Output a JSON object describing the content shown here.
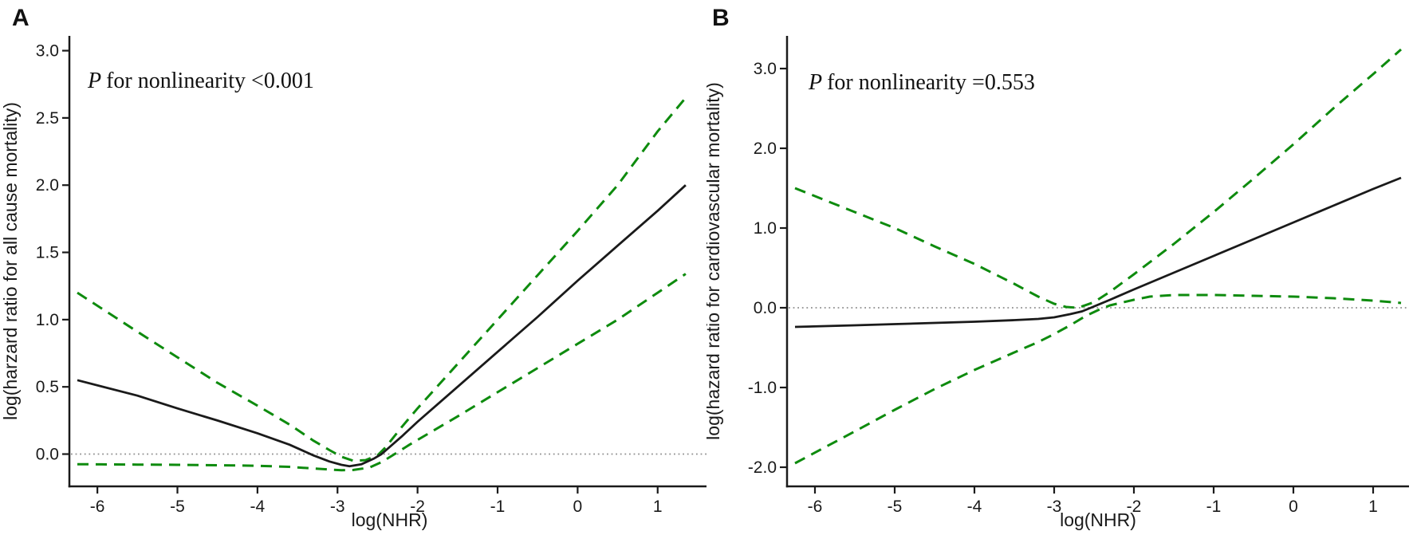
{
  "figure": {
    "background": "#ffffff",
    "axis_color": "#1a1a1a",
    "ci_color": "#0e8b0e",
    "reference_line_color": "#8f8f8f",
    "estimate_color": "#1a1a1a"
  },
  "chart_data": [
    {
      "type": "line",
      "panel_label": "A",
      "annotation": {
        "p": "P",
        "rest": "for nonlinearity <0.001"
      },
      "xlabel": "log(NHR)",
      "ylabel": "log(harzard ratio for all cause mortality)",
      "xlim": [
        -6.35,
        1.65
      ],
      "ylim": [
        -0.24,
        3.11
      ],
      "grid": false,
      "legend": "none",
      "reference_line_y": 0,
      "xticks": [
        {
          "v": -6,
          "label": "-6"
        },
        {
          "v": -5,
          "label": "-5"
        },
        {
          "v": -4,
          "label": "-4"
        },
        {
          "v": -3,
          "label": "-3"
        },
        {
          "v": -2,
          "label": "-2"
        },
        {
          "v": -1,
          "label": "-1"
        },
        {
          "v": 0,
          "label": "0"
        },
        {
          "v": 1,
          "label": "1"
        }
      ],
      "yticks": [
        {
          "v": 0.0,
          "label": "0.0"
        },
        {
          "v": 0.5,
          "label": "0.5"
        },
        {
          "v": 1.0,
          "label": "1.0"
        },
        {
          "v": 1.5,
          "label": "1.5"
        },
        {
          "v": 2.0,
          "label": "2.0"
        },
        {
          "v": 2.5,
          "label": "2.5"
        },
        {
          "v": 3.0,
          "label": "3.0"
        }
      ],
      "series": [
        {
          "name": "hazard-estimate",
          "style": "solid",
          "color": "#1a1a1a",
          "width": 2.8,
          "points": [
            [
              -6.25,
              0.55
            ],
            [
              -5.5,
              0.435
            ],
            [
              -5,
              0.34
            ],
            [
              -4.5,
              0.25
            ],
            [
              -4,
              0.155
            ],
            [
              -3.6,
              0.07
            ],
            [
              -3.3,
              -0.01
            ],
            [
              -3.1,
              -0.055
            ],
            [
              -2.95,
              -0.08
            ],
            [
              -2.85,
              -0.09
            ],
            [
              -2.7,
              -0.075
            ],
            [
              -2.55,
              -0.035
            ],
            [
              -2.45,
              0
            ],
            [
              -2.2,
              0.13
            ],
            [
              -2,
              0.24
            ],
            [
              -1.5,
              0.5
            ],
            [
              -1,
              0.76
            ],
            [
              -0.5,
              1.02
            ],
            [
              0,
              1.29
            ],
            [
              0.5,
              1.55
            ],
            [
              1,
              1.81
            ],
            [
              1.35,
              2.0
            ]
          ]
        },
        {
          "name": "upper-confidence-limit",
          "style": "dashed",
          "color": "#0e8b0e",
          "width": 3,
          "points": [
            [
              -6.25,
              1.2
            ],
            [
              -5.5,
              0.91
            ],
            [
              -5,
              0.72
            ],
            [
              -4.5,
              0.53
            ],
            [
              -4,
              0.36
            ],
            [
              -3.6,
              0.22
            ],
            [
              -3.3,
              0.1
            ],
            [
              -3.1,
              0.03
            ],
            [
              -2.95,
              -0.02
            ],
            [
              -2.8,
              -0.05
            ],
            [
              -2.65,
              -0.045
            ],
            [
              -2.5,
              -0.01
            ],
            [
              -2.4,
              0.05
            ],
            [
              -2.2,
              0.2
            ],
            [
              -2,
              0.34
            ],
            [
              -1.5,
              0.67
            ],
            [
              -1,
              1.0
            ],
            [
              -0.5,
              1.33
            ],
            [
              0,
              1.66
            ],
            [
              0.5,
              2.0
            ],
            [
              1,
              2.4
            ],
            [
              1.35,
              2.65
            ]
          ]
        },
        {
          "name": "lower-confidence-limit",
          "style": "dashed",
          "color": "#0e8b0e",
          "width": 3,
          "points": [
            [
              -6.25,
              -0.075
            ],
            [
              -5.5,
              -0.078
            ],
            [
              -5,
              -0.08
            ],
            [
              -4.5,
              -0.083
            ],
            [
              -4,
              -0.087
            ],
            [
              -3.6,
              -0.095
            ],
            [
              -3.3,
              -0.107
            ],
            [
              -3.1,
              -0.115
            ],
            [
              -2.95,
              -0.12
            ],
            [
              -2.8,
              -0.118
            ],
            [
              -2.6,
              -0.1
            ],
            [
              -2.45,
              -0.06
            ],
            [
              -2.3,
              -0.005
            ],
            [
              -2.1,
              0.07
            ],
            [
              -2,
              0.105
            ],
            [
              -1.5,
              0.28
            ],
            [
              -1,
              0.46
            ],
            [
              -0.5,
              0.64
            ],
            [
              0,
              0.82
            ],
            [
              0.5,
              1.0
            ],
            [
              1,
              1.2
            ],
            [
              1.35,
              1.34
            ]
          ]
        }
      ]
    },
    {
      "type": "line",
      "panel_label": "B",
      "annotation": {
        "p": "P",
        "rest": "for nonlinearity =0.553"
      },
      "xlabel": "log(NHR)",
      "ylabel": "log(hazard ratio for cardiovascular mortality)",
      "xlim": [
        -6.35,
        1.45
      ],
      "ylim": [
        -2.24,
        3.41
      ],
      "grid": false,
      "legend": "none",
      "reference_line_y": 0,
      "xticks": [
        {
          "v": -6,
          "label": "-6"
        },
        {
          "v": -5,
          "label": "-5"
        },
        {
          "v": -4,
          "label": "-4"
        },
        {
          "v": -3,
          "label": "-3"
        },
        {
          "v": -2,
          "label": "-2"
        },
        {
          "v": -1,
          "label": "-1"
        },
        {
          "v": 0,
          "label": "0"
        },
        {
          "v": 1,
          "label": "1"
        }
      ],
      "yticks": [
        {
          "v": -2.0,
          "label": "-2.0"
        },
        {
          "v": -1.0,
          "label": "-1.0"
        },
        {
          "v": 0.0,
          "label": "0.0"
        },
        {
          "v": 1.0,
          "label": "1.0"
        },
        {
          "v": 2.0,
          "label": "2.0"
        },
        {
          "v": 3.0,
          "label": "3.0"
        }
      ],
      "series": [
        {
          "name": "hazard-estimate",
          "style": "solid",
          "color": "#1a1a1a",
          "width": 2.8,
          "points": [
            [
              -6.25,
              -0.24
            ],
            [
              -5.5,
              -0.22
            ],
            [
              -5,
              -0.205
            ],
            [
              -4.5,
              -0.19
            ],
            [
              -4,
              -0.175
            ],
            [
              -3.5,
              -0.155
            ],
            [
              -3.2,
              -0.14
            ],
            [
              -3,
              -0.12
            ],
            [
              -2.8,
              -0.08
            ],
            [
              -2.65,
              -0.045
            ],
            [
              -2.54,
              0
            ],
            [
              -2.3,
              0.1
            ],
            [
              -2,
              0.23
            ],
            [
              -1.5,
              0.44
            ],
            [
              -1,
              0.65
            ],
            [
              -0.5,
              0.86
            ],
            [
              0,
              1.07
            ],
            [
              0.5,
              1.28
            ],
            [
              1,
              1.49
            ],
            [
              1.35,
              1.63
            ]
          ]
        },
        {
          "name": "upper-confidence-limit",
          "style": "dashed",
          "color": "#0e8b0e",
          "width": 3,
          "points": [
            [
              -6.25,
              1.5
            ],
            [
              -5.5,
              1.2
            ],
            [
              -5,
              1.0
            ],
            [
              -4.5,
              0.77
            ],
            [
              -4,
              0.55
            ],
            [
              -3.5,
              0.3
            ],
            [
              -3.2,
              0.14
            ],
            [
              -3,
              0.05
            ],
            [
              -2.85,
              0.01
            ],
            [
              -2.7,
              0.0
            ],
            [
              -2.5,
              0.07
            ],
            [
              -2.3,
              0.2
            ],
            [
              -2,
              0.42
            ],
            [
              -1.5,
              0.8
            ],
            [
              -1,
              1.2
            ],
            [
              -0.5,
              1.62
            ],
            [
              0,
              2.05
            ],
            [
              0.5,
              2.5
            ],
            [
              1,
              2.93
            ],
            [
              1.35,
              3.24
            ]
          ]
        },
        {
          "name": "lower-confidence-limit",
          "style": "dashed",
          "color": "#0e8b0e",
          "width": 3,
          "points": [
            [
              -6.25,
              -1.95
            ],
            [
              -5.5,
              -1.55
            ],
            [
              -5,
              -1.28
            ],
            [
              -4.5,
              -1.02
            ],
            [
              -4,
              -0.78
            ],
            [
              -3.5,
              -0.56
            ],
            [
              -3.2,
              -0.43
            ],
            [
              -3,
              -0.33
            ],
            [
              -2.8,
              -0.22
            ],
            [
              -2.6,
              -0.1
            ],
            [
              -2.45,
              -0.03
            ],
            [
              -2.3,
              0.03
            ],
            [
              -2,
              0.1
            ],
            [
              -1.8,
              0.14
            ],
            [
              -1.5,
              0.16
            ],
            [
              -1,
              0.16
            ],
            [
              -0.5,
              0.15
            ],
            [
              0,
              0.14
            ],
            [
              0.5,
              0.12
            ],
            [
              1,
              0.09
            ],
            [
              1.35,
              0.06
            ]
          ]
        }
      ]
    }
  ]
}
